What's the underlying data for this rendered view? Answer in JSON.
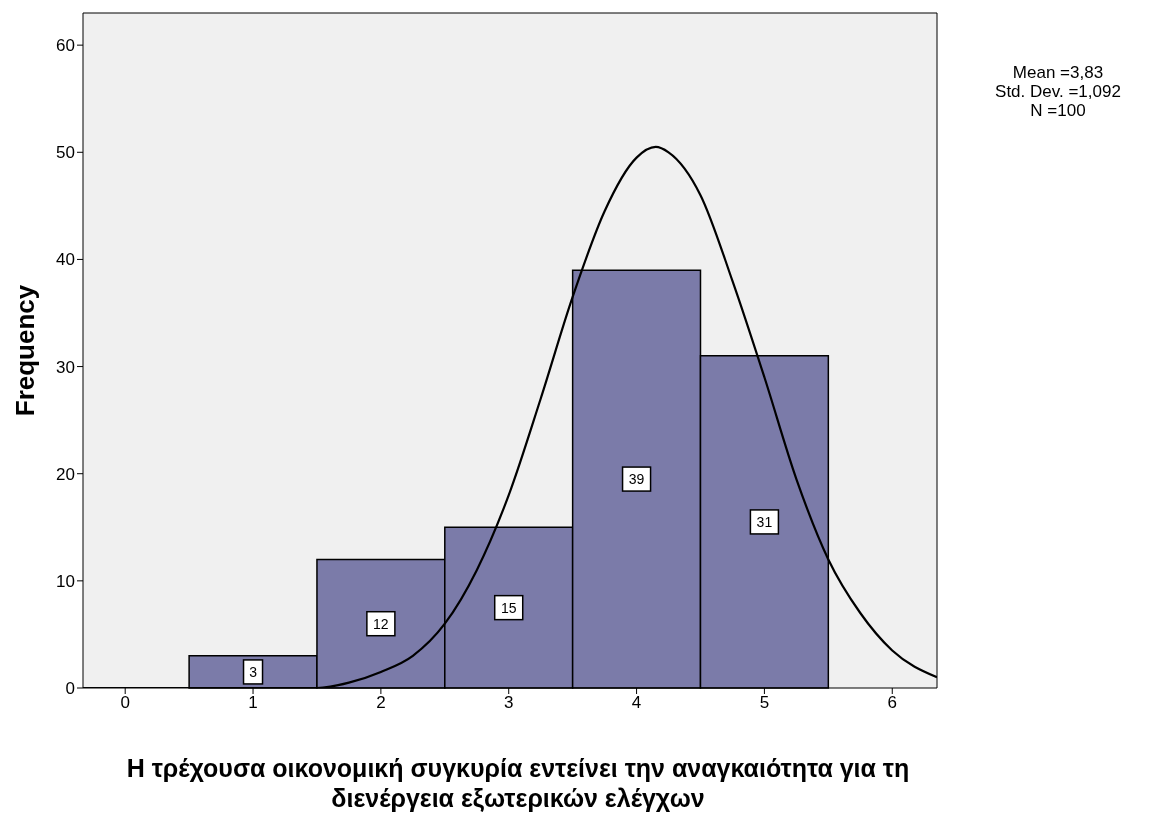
{
  "chart_data": {
    "type": "histogram",
    "xlabel": "Η τρέχουσα οικονομική συγκυρία εντείνει την αναγκαιότητα για τη διενέργεια εξωτερικών ελέγχων",
    "ylabel": "Frequency",
    "bins": [
      0.5,
      1.5,
      2.5,
      3.5,
      4.5,
      5.5
    ],
    "values": [
      3,
      12,
      15,
      39,
      31
    ],
    "value_labels": [
      "3",
      "12",
      "15",
      "39",
      "31"
    ],
    "color": "#7b7ba9",
    "series": [
      {
        "type": "line",
        "color": "#000000",
        "x": [
          -0.33,
          0,
          1,
          1.5,
          1.75,
          2,
          2.25,
          2.5,
          2.75,
          3,
          3.25,
          3.5,
          3.75,
          4,
          4.15,
          4.25,
          4.5,
          4.75,
          5,
          5.25,
          5.5,
          5.75,
          6,
          6.35
        ],
        "values": [
          0,
          0,
          0,
          0,
          0.5,
          1.5,
          3,
          6,
          11,
          18,
          27,
          36.5,
          44.5,
          49.5,
          50.5,
          50,
          46,
          38,
          29,
          19.5,
          12,
          7,
          3.5,
          1
        ]
      }
    ],
    "xlim": [
      -0.33,
      6.35
    ],
    "xticks": [
      0,
      1,
      2,
      3,
      4,
      5,
      6
    ],
    "ylim": [
      0,
      63
    ],
    "yticks": [
      0,
      10,
      20,
      30,
      40,
      50,
      60
    ],
    "grid": false,
    "legend": false,
    "annotations": [
      "Mean =3,83",
      "Std. Dev. =1,092",
      "N =100"
    ]
  }
}
